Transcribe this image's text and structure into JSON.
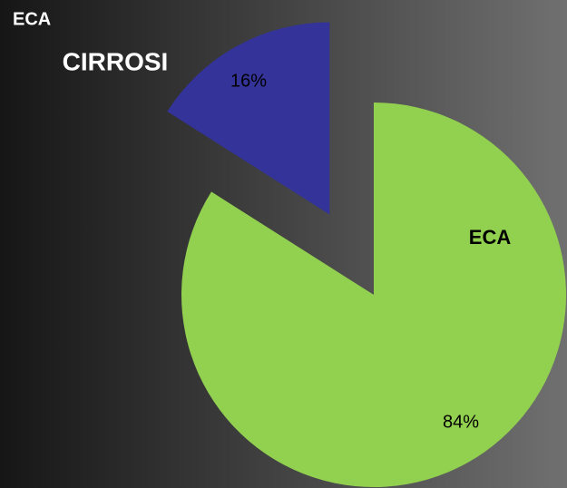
{
  "chart_data": {
    "type": "pie",
    "title": "ECA",
    "categories": [
      "ECA",
      "CIRROSI"
    ],
    "values": [
      84,
      16
    ],
    "value_labels": [
      "84%",
      "16%"
    ],
    "colors": [
      "#92d050",
      "#333399"
    ]
  }
}
